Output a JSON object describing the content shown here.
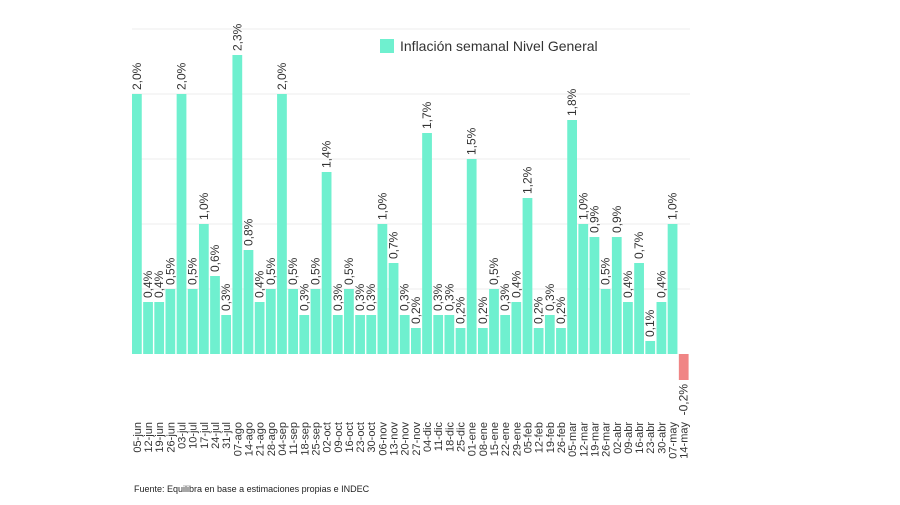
{
  "chart_data": {
    "type": "bar",
    "title": "",
    "legend": "Inflación semanal Nivel General",
    "source": "Fuente: Equilibra en base a estimaciones propias e INDEC",
    "categories": [
      "05-jun",
      "12-jun",
      "19-jun",
      "26-jun",
      "03-jul",
      "10-jul",
      "17-jul",
      "24-jul",
      "31-jul",
      "07-ago",
      "14-ago",
      "21-ago",
      "28-ago",
      "04-sep",
      "11-sep",
      "18-sep",
      "25-sep",
      "02-oct",
      "09-oct",
      "16-oct",
      "23-oct",
      "30-oct",
      "06-nov",
      "13-nov",
      "20-nov",
      "27-nov",
      "04-dic",
      "11-dic",
      "18-dic",
      "25-dic",
      "01-ene",
      "08-ene",
      "15-ene",
      "22-ene",
      "29-ene",
      "05-feb",
      "12-feb",
      "19-feb",
      "26-feb",
      "05-mar",
      "12-mar",
      "19-mar",
      "26-mar",
      "02-abr",
      "09-abr",
      "16-abr",
      "23-abr",
      "30-abr",
      "07-may",
      "14-may"
    ],
    "values": [
      2.0,
      0.4,
      0.4,
      0.5,
      2.0,
      0.5,
      1.0,
      0.6,
      0.3,
      2.3,
      0.8,
      0.4,
      0.5,
      2.0,
      0.5,
      0.3,
      0.5,
      1.4,
      0.3,
      0.5,
      0.3,
      0.3,
      1.0,
      0.7,
      0.3,
      0.2,
      1.7,
      0.3,
      0.3,
      0.2,
      1.5,
      0.2,
      0.5,
      0.3,
      0.4,
      1.2,
      0.2,
      0.3,
      0.2,
      1.8,
      1.0,
      0.9,
      0.5,
      0.9,
      0.4,
      0.7,
      0.1,
      0.4,
      1.0,
      -0.2
    ],
    "labels": [
      "2,0%",
      "0,4%",
      "0,4%",
      "0,5%",
      "2,0%",
      "0,5%",
      "1,0%",
      "0,6%",
      "0,3%",
      "2,3%",
      "0,8%",
      "0,4%",
      "0,5%",
      "2,0%",
      "0,5%",
      "0,3%",
      "0,5%",
      "1,4%",
      "0,3%",
      "0,5%",
      "0,3%",
      "0,3%",
      "1,0%",
      "0,7%",
      "0,3%",
      "0,2%",
      "1,7%",
      "0,3%",
      "0,3%",
      "0,2%",
      "1,5%",
      "0,2%",
      "0,5%",
      "0,3%",
      "0,4%",
      "1,2%",
      "0,2%",
      "0,3%",
      "0,2%",
      "1,8%",
      "1,0%",
      "0,9%",
      "0,5%",
      "0,9%",
      "0,4%",
      "0,7%",
      "0,1%",
      "0,4%",
      "1,0%",
      "-0,2%"
    ],
    "ylim": [
      -0.2,
      2.5
    ],
    "grid": true,
    "colors": {
      "positive": "#6ff0cf",
      "negative": "#f08585",
      "grid": "#eeeeee",
      "text": "#333333"
    }
  }
}
